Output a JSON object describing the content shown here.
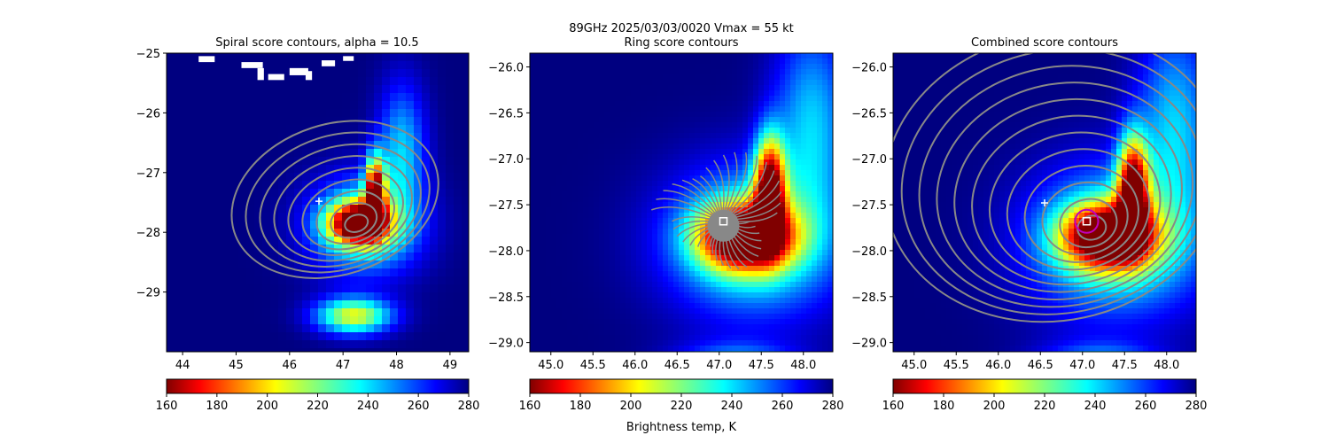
{
  "figure": {
    "suptitle_line1": "89GHz  2025/03/03/0020    Vmax = 55 kt",
    "colorbar_label": "Brightness temp, K"
  },
  "chart_data": [
    {
      "type": "heatmap",
      "title": "Spiral score contours, alpha = 10.5",
      "xlabel": "",
      "ylabel": "",
      "xlim": [
        43.7,
        49.35
      ],
      "ylim": [
        -30.0,
        -25.0
      ],
      "xticks": [
        44,
        45,
        46,
        47,
        48,
        49
      ],
      "yticks": [
        -25,
        -26,
        -27,
        -28,
        -29
      ],
      "markers": [
        {
          "type": "plus",
          "x": 46.55,
          "y": -27.48,
          "color": "#ffffff"
        }
      ],
      "colorbar": {
        "min": 160,
        "max": 280,
        "ticks": [
          160,
          180,
          200,
          220,
          240,
          260,
          280
        ],
        "colormap": "jet_r"
      }
    },
    {
      "type": "heatmap",
      "title": "Ring score contours",
      "xlabel": "",
      "ylabel": "",
      "xlim": [
        44.75,
        48.35
      ],
      "ylim": [
        -29.1,
        -25.85
      ],
      "xticks": [
        45.0,
        45.5,
        46.0,
        46.5,
        47.0,
        47.5,
        48.0
      ],
      "yticks": [
        -26.0,
        -26.5,
        -27.0,
        -27.5,
        -28.0,
        -28.5,
        -29.0
      ],
      "markers": [
        {
          "type": "square",
          "x": 47.05,
          "y": -27.68,
          "color": "#ffffff"
        }
      ],
      "colorbar": {
        "min": 160,
        "max": 280,
        "ticks": [
          160,
          180,
          200,
          220,
          240,
          260,
          280
        ],
        "colormap": "jet_r"
      }
    },
    {
      "type": "heatmap",
      "title": "Combined score contours",
      "xlabel": "",
      "ylabel": "",
      "xlim": [
        44.75,
        48.35
      ],
      "ylim": [
        -29.1,
        -25.85
      ],
      "xticks": [
        45.0,
        45.5,
        46.0,
        46.5,
        47.0,
        47.5,
        48.0
      ],
      "yticks": [
        -26.0,
        -26.5,
        -27.0,
        -27.5,
        -28.0,
        -28.5,
        -29.0
      ],
      "markers": [
        {
          "type": "plus",
          "x": 46.55,
          "y": -27.48,
          "color": "#ffffff"
        },
        {
          "type": "square",
          "x": 47.05,
          "y": -27.68,
          "color": "#ffffff"
        },
        {
          "type": "circle",
          "x": 47.05,
          "y": -27.68,
          "color": "#bf00bf"
        }
      ],
      "colorbar": {
        "min": 160,
        "max": 280,
        "ticks": [
          160,
          180,
          200,
          220,
          240,
          260,
          280
        ],
        "colormap": "jet_r"
      }
    }
  ]
}
